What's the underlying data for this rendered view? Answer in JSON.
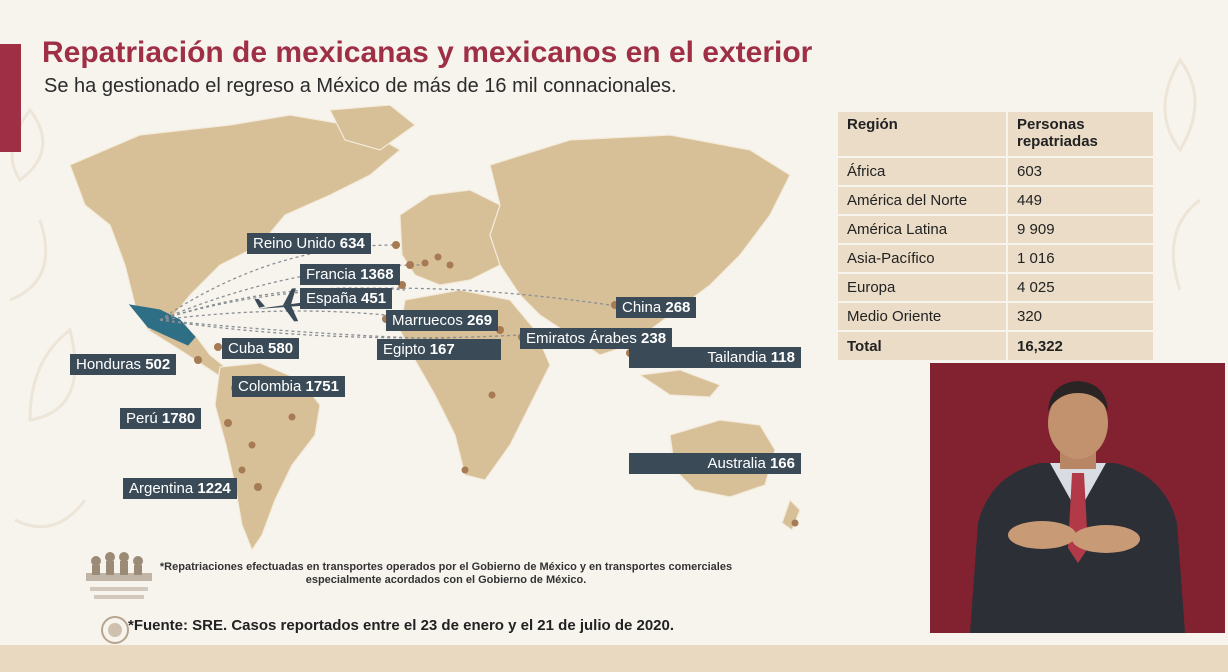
{
  "header": {
    "title": "Repatriación de mexicanas y mexicanos en el exterior",
    "subtitle": "Se ha gestionado el regreso a México de más de 16 mil connacionales."
  },
  "colors": {
    "accent": "#9e2f45",
    "label_bg": "#3a4b57",
    "map_land": "#d7bf97",
    "dot": "#a67a52",
    "table_bg": "#eadcc7",
    "mexico": "#2f6f86"
  },
  "map": {
    "labels": [
      {
        "name": "Reino Unido",
        "value": "634"
      },
      {
        "name": "Francia",
        "value": "1368"
      },
      {
        "name": "España",
        "value": "451"
      },
      {
        "name": "Marruecos",
        "value": "269"
      },
      {
        "name": "China",
        "value": "268"
      },
      {
        "name": "Emiratos Árabes",
        "value": "238"
      },
      {
        "name": "Egipto",
        "value": "167"
      },
      {
        "name": "Tailandia",
        "value": "118"
      },
      {
        "name": "Honduras",
        "value": "502"
      },
      {
        "name": "Cuba",
        "value": "580"
      },
      {
        "name": "Colombia",
        "value": "1751"
      },
      {
        "name": "Perú",
        "value": "1780"
      },
      {
        "name": "Australia",
        "value": "166"
      },
      {
        "name": "Argentina",
        "value": "1224"
      }
    ]
  },
  "table": {
    "headers": [
      "Región",
      "Personas repatriadas"
    ],
    "rows": [
      {
        "region": "África",
        "value": "603"
      },
      {
        "region": "América del Norte",
        "value": "449"
      },
      {
        "region": "América Latina",
        "value": "9 909"
      },
      {
        "region": "Asia-Pacífico",
        "value": "1 016"
      },
      {
        "region": "Europa",
        "value": "4 025"
      },
      {
        "region": "Medio Oriente",
        "value": "320"
      }
    ],
    "total": {
      "label": "Total",
      "value": "16,322"
    }
  },
  "footer": {
    "note_line1": "*Repatriaciones efectuadas en transportes operados por el Gobierno de México y en transportes comerciales",
    "note_line2": "especialmente acordados con el Gobierno de México.",
    "source": "*Fuente: SRE. Casos reportados entre el 23 de enero y el 21 de julio de 2020."
  },
  "icons": {
    "airplane": "airplane-icon",
    "logo": "government-logo",
    "seal": "national-seal-icon"
  }
}
